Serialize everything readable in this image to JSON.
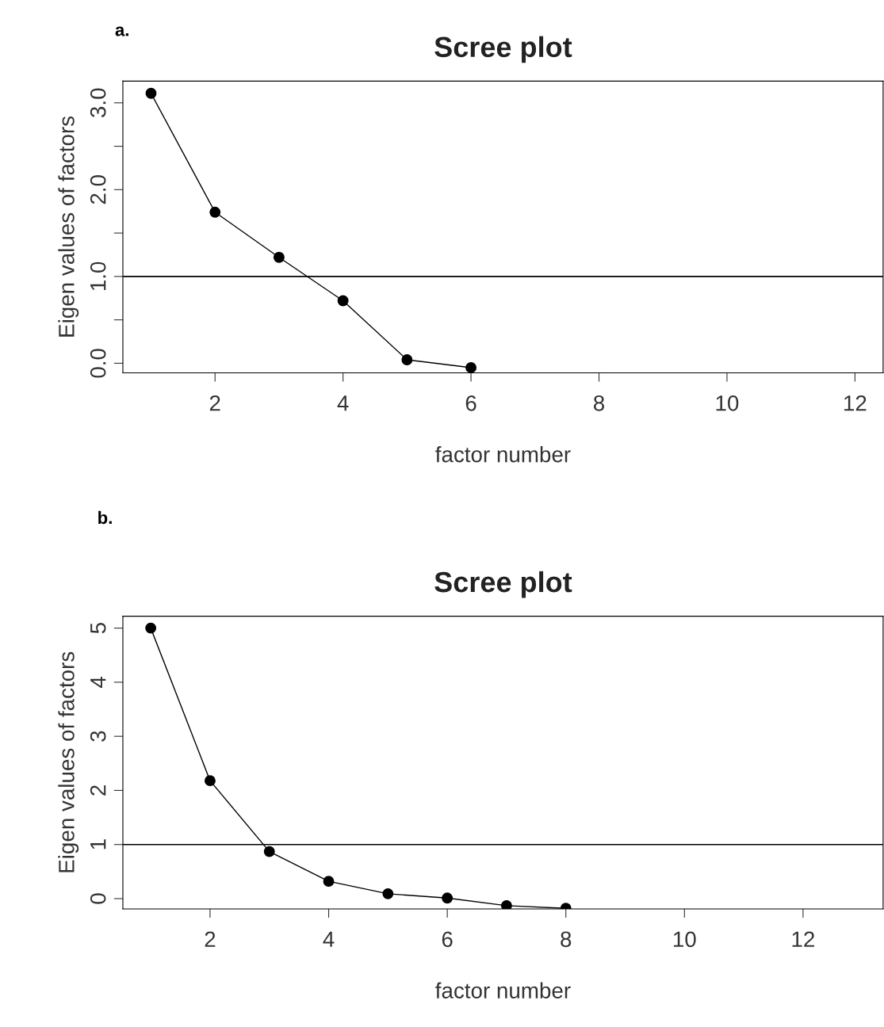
{
  "chart_data": [
    {
      "type": "line",
      "title": "Scree plot",
      "xlabel": "factor number",
      "ylabel": "Eigen values of factors",
      "annotations": [
        "a."
      ],
      "x": [
        1,
        2,
        3,
        4,
        5,
        6
      ],
      "series": [
        {
          "color": "#000000",
          "values": [
            3.11,
            1.74,
            1.22,
            0.72,
            0.04,
            -0.05
          ]
        }
      ],
      "marker": "circle",
      "line_style": "solid",
      "grid": false,
      "xlim": [
        0.56,
        12.44
      ],
      "xticks": [
        2,
        4,
        6,
        8,
        10,
        12
      ],
      "ylim": [
        -0.11,
        3.25
      ],
      "yticks": [
        {
          "value": 0,
          "label": "0.0"
        },
        {
          "value": 0.5,
          "label": null
        },
        {
          "value": 1,
          "label": "1.0"
        },
        {
          "value": 1.5,
          "label": null
        },
        {
          "value": 2,
          "label": "2.0"
        },
        {
          "value": 2.5,
          "label": null
        },
        {
          "value": 3,
          "label": "3.0"
        }
      ],
      "ref_lines": [
        {
          "axis": "y",
          "value": 1,
          "color": "#000000"
        }
      ]
    },
    {
      "type": "line",
      "title": "Scree plot",
      "xlabel": "factor number",
      "ylabel": "Eigen values of factors",
      "annotations": [
        "b."
      ],
      "x": [
        1,
        2,
        3,
        4,
        5,
        6,
        7,
        8
      ],
      "series": [
        {
          "color": "#000000",
          "values": [
            5.0,
            2.18,
            0.87,
            0.32,
            0.09,
            0.01,
            -0.13,
            -0.18
          ]
        }
      ],
      "marker": "circle",
      "line_style": "solid",
      "grid": false,
      "xlim": [
        0.53,
        13.35
      ],
      "xticks": [
        2,
        4,
        6,
        8,
        10,
        12
      ],
      "ylim": [
        -0.19,
        5.22
      ],
      "yticks": [
        0,
        1,
        2,
        3,
        4,
        5
      ],
      "ref_lines": [
        {
          "axis": "y",
          "value": 1,
          "color": "#000000"
        }
      ]
    }
  ]
}
